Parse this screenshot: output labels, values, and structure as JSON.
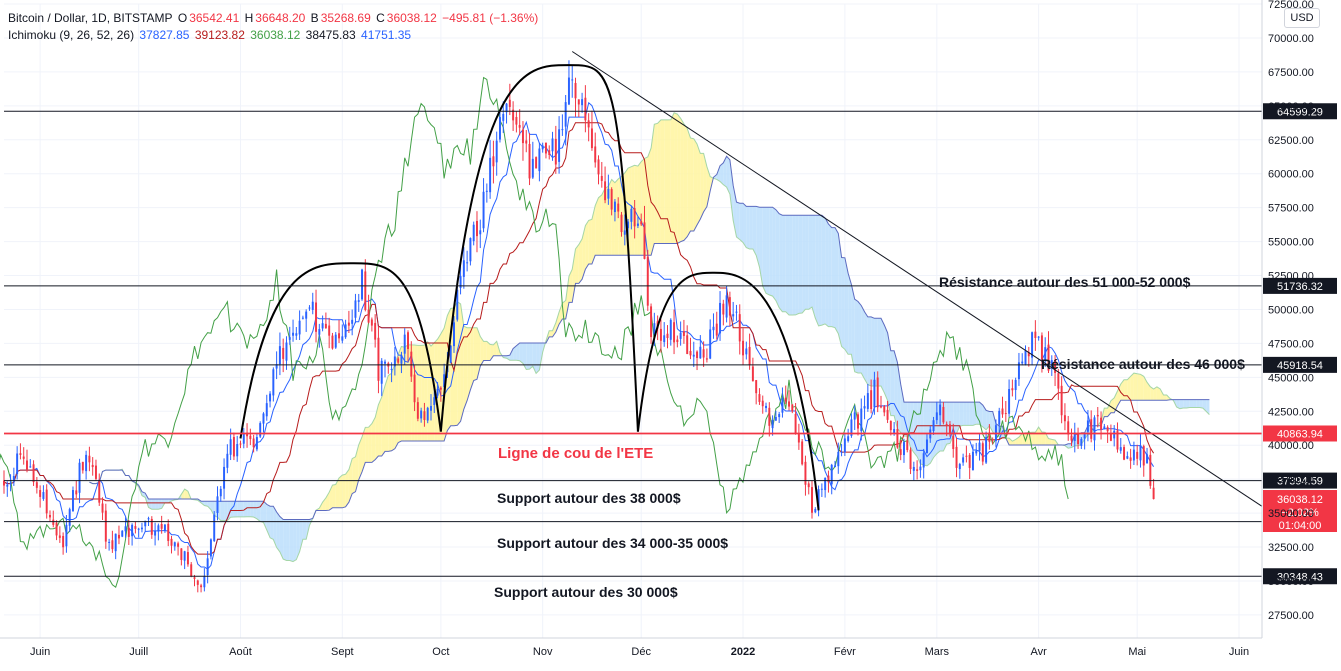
{
  "header": {
    "symbol": "Bitcoin / Dollar, 1D, BITSTAMP",
    "o_label": "O",
    "o_value": "36542.41",
    "h_label": "H",
    "h_value": "36648.20",
    "b_label": "B",
    "b_value": "35268.69",
    "c_label": "C",
    "c_value": "36038.12",
    "change": "−495.81 (−1.36%)",
    "indicator": "Ichimoku (9, 26, 52, 26)",
    "ichimoku_values": [
      "37827.85",
      "39123.82",
      "36038.12",
      "38475.83",
      "41751.35"
    ],
    "currency_button": "USD"
  },
  "colors": {
    "up": "#2962ff",
    "down": "#f23645",
    "tenkan": "#2962ff",
    "kijun": "#b71c1c",
    "chikou": "#43a047",
    "kumo_bull": "#fff59d",
    "kumo_bear": "#bbdefb",
    "neckline": "#f23645",
    "text": "#131722",
    "grid": "#f0f3fa"
  },
  "chart_data": {
    "type": "candlestick",
    "title": "",
    "y_axis": {
      "min": 25800,
      "max": 72500,
      "position": "right",
      "ticks": [
        27500,
        30000,
        32500,
        35000,
        37500,
        40000,
        42500,
        45000,
        47500,
        50000,
        52500,
        55000,
        57500,
        60000,
        62500,
        65000,
        67500,
        70000,
        72500
      ],
      "tick_labels": [
        "27500.00",
        "30000.00",
        "32500.00",
        "35000.00",
        "37500.00",
        "40000.00",
        "42500.00",
        "45000.00",
        "47500.00",
        "50000.00",
        "52500.00",
        "55000.00",
        "57500.00",
        "60000.00",
        "62500.00",
        "65000.00",
        "67500.00",
        "70000.00",
        "72500.00"
      ]
    },
    "x_axis": {
      "start": "2021-05-21",
      "end": "2022-06-08",
      "ticks": [
        {
          "label": "Juin",
          "date": "2021-06-01",
          "bold": false
        },
        {
          "label": "Juill",
          "date": "2021-07-01",
          "bold": false
        },
        {
          "label": "Août",
          "date": "2021-08-01",
          "bold": false
        },
        {
          "label": "Sept",
          "date": "2021-09-01",
          "bold": false
        },
        {
          "label": "Oct",
          "date": "2021-10-01",
          "bold": false
        },
        {
          "label": "Nov",
          "date": "2021-11-01",
          "bold": false
        },
        {
          "label": "Déc",
          "date": "2021-12-01",
          "bold": false
        },
        {
          "label": "2022",
          "date": "2022-01-01",
          "bold": true
        },
        {
          "label": "Févr",
          "date": "2022-02-01",
          "bold": false
        },
        {
          "label": "Mars",
          "date": "2022-03-01",
          "bold": false
        },
        {
          "label": "Avr",
          "date": "2022-04-01",
          "bold": false
        },
        {
          "label": "Mai",
          "date": "2022-05-01",
          "bold": false
        },
        {
          "label": "Juin",
          "date": "2022-06-01",
          "bold": false
        }
      ]
    },
    "price_path": [
      [
        "2021-05-21",
        37000
      ],
      [
        "2021-05-26",
        39000
      ],
      [
        "2021-06-01",
        36500
      ],
      [
        "2021-06-08",
        33000
      ],
      [
        "2021-06-15",
        40000
      ],
      [
        "2021-06-22",
        32500
      ],
      [
        "2021-07-01",
        34500
      ],
      [
        "2021-07-10",
        33500
      ],
      [
        "2021-07-20",
        29800
      ],
      [
        "2021-07-28",
        39500
      ],
      [
        "2021-08-05",
        40500
      ],
      [
        "2021-08-14",
        47000
      ],
      [
        "2021-08-23",
        49500
      ],
      [
        "2021-09-01",
        47500
      ],
      [
        "2021-09-07",
        52500
      ],
      [
        "2021-09-12",
        45500
      ],
      [
        "2021-09-20",
        47500
      ],
      [
        "2021-09-24",
        42500
      ],
      [
        "2021-10-01",
        43500
      ],
      [
        "2021-10-06",
        51500
      ],
      [
        "2021-10-14",
        57500
      ],
      [
        "2021-10-20",
        64500
      ],
      [
        "2021-10-28",
        61000
      ],
      [
        "2021-11-05",
        61500
      ],
      [
        "2021-11-10",
        67500
      ],
      [
        "2021-11-15",
        64500
      ],
      [
        "2021-11-20",
        58000
      ],
      [
        "2021-11-27",
        56500
      ],
      [
        "2021-12-01",
        57200
      ],
      [
        "2021-12-04",
        48000
      ],
      [
        "2021-12-10",
        48500
      ],
      [
        "2021-12-20",
        46500
      ],
      [
        "2021-12-27",
        51000
      ],
      [
        "2022-01-01",
        47500
      ],
      [
        "2022-01-08",
        42000
      ],
      [
        "2022-01-15",
        43000
      ],
      [
        "2022-01-22",
        35500
      ],
      [
        "2022-01-28",
        38000
      ],
      [
        "2022-02-04",
        41500
      ],
      [
        "2022-02-10",
        44000
      ],
      [
        "2022-02-17",
        40500
      ],
      [
        "2022-02-24",
        37800
      ],
      [
        "2022-03-02",
        43500
      ],
      [
        "2022-03-07",
        38500
      ],
      [
        "2022-03-15",
        39500
      ],
      [
        "2022-03-22",
        42500
      ],
      [
        "2022-03-29",
        47500
      ],
      [
        "2022-04-04",
        46500
      ],
      [
        "2022-04-11",
        40500
      ],
      [
        "2022-04-20",
        41500
      ],
      [
        "2022-04-28",
        39500
      ],
      [
        "2022-05-04",
        39000
      ],
      [
        "2022-05-06",
        36038
      ]
    ],
    "support_resistance": [
      {
        "price": 64599.29,
        "label": "64599.29",
        "color": "#131722"
      },
      {
        "price": 51736.32,
        "label": "51736.32",
        "color": "#131722"
      },
      {
        "price": 45918.54,
        "label": "45918.54",
        "color": "#131722"
      },
      {
        "price": 40863.94,
        "label": "40863.94",
        "color": "#f23645"
      },
      {
        "price": 37394.59,
        "label": "37394.59",
        "color": "#131722"
      },
      {
        "price": 34370.56,
        "label": "34370.56",
        "color": "#131722"
      },
      {
        "price": 30348.43,
        "label": "30348.43",
        "color": "#131722"
      }
    ],
    "current_price_tag": {
      "price": 36038.12,
      "lines": [
        "36038.12",
        "−2.02%",
        "01:04:00"
      ],
      "color": "#f23645"
    },
    "trendline": {
      "from": [
        "2021-11-10",
        69000
      ],
      "to": [
        "2022-06-08",
        35500
      ]
    },
    "head_and_shoulders": {
      "left_shoulder": {
        "start": [
          "2021-08-01",
          40500
        ],
        "peak": [
          "2021-09-04",
          53400
        ],
        "end": [
          "2021-10-01",
          41000
        ]
      },
      "head": {
        "start": [
          "2021-10-01",
          41000
        ],
        "peak": [
          "2021-11-09",
          68000
        ],
        "end": [
          "2021-11-30",
          41000
        ]
      },
      "right_shoulder": {
        "start": [
          "2021-11-30",
          41000
        ],
        "peak": [
          "2021-12-23",
          52700
        ],
        "end": [
          "2022-01-24",
          35200
        ]
      }
    },
    "annotations": [
      {
        "text": "Résistance autour des 51 000-52 000$",
        "color": "#131722"
      },
      {
        "text": "Résistance autour des 46 000$",
        "color": "#131722"
      },
      {
        "text": "Ligne de cou de l'ETE",
        "color": "#f23645"
      },
      {
        "text": "Support autour des 38 000$",
        "color": "#131722"
      },
      {
        "text": "Support autour des 34 000-35 000$",
        "color": "#131722"
      },
      {
        "text": "Support autour des 30 000$",
        "color": "#131722"
      }
    ]
  }
}
